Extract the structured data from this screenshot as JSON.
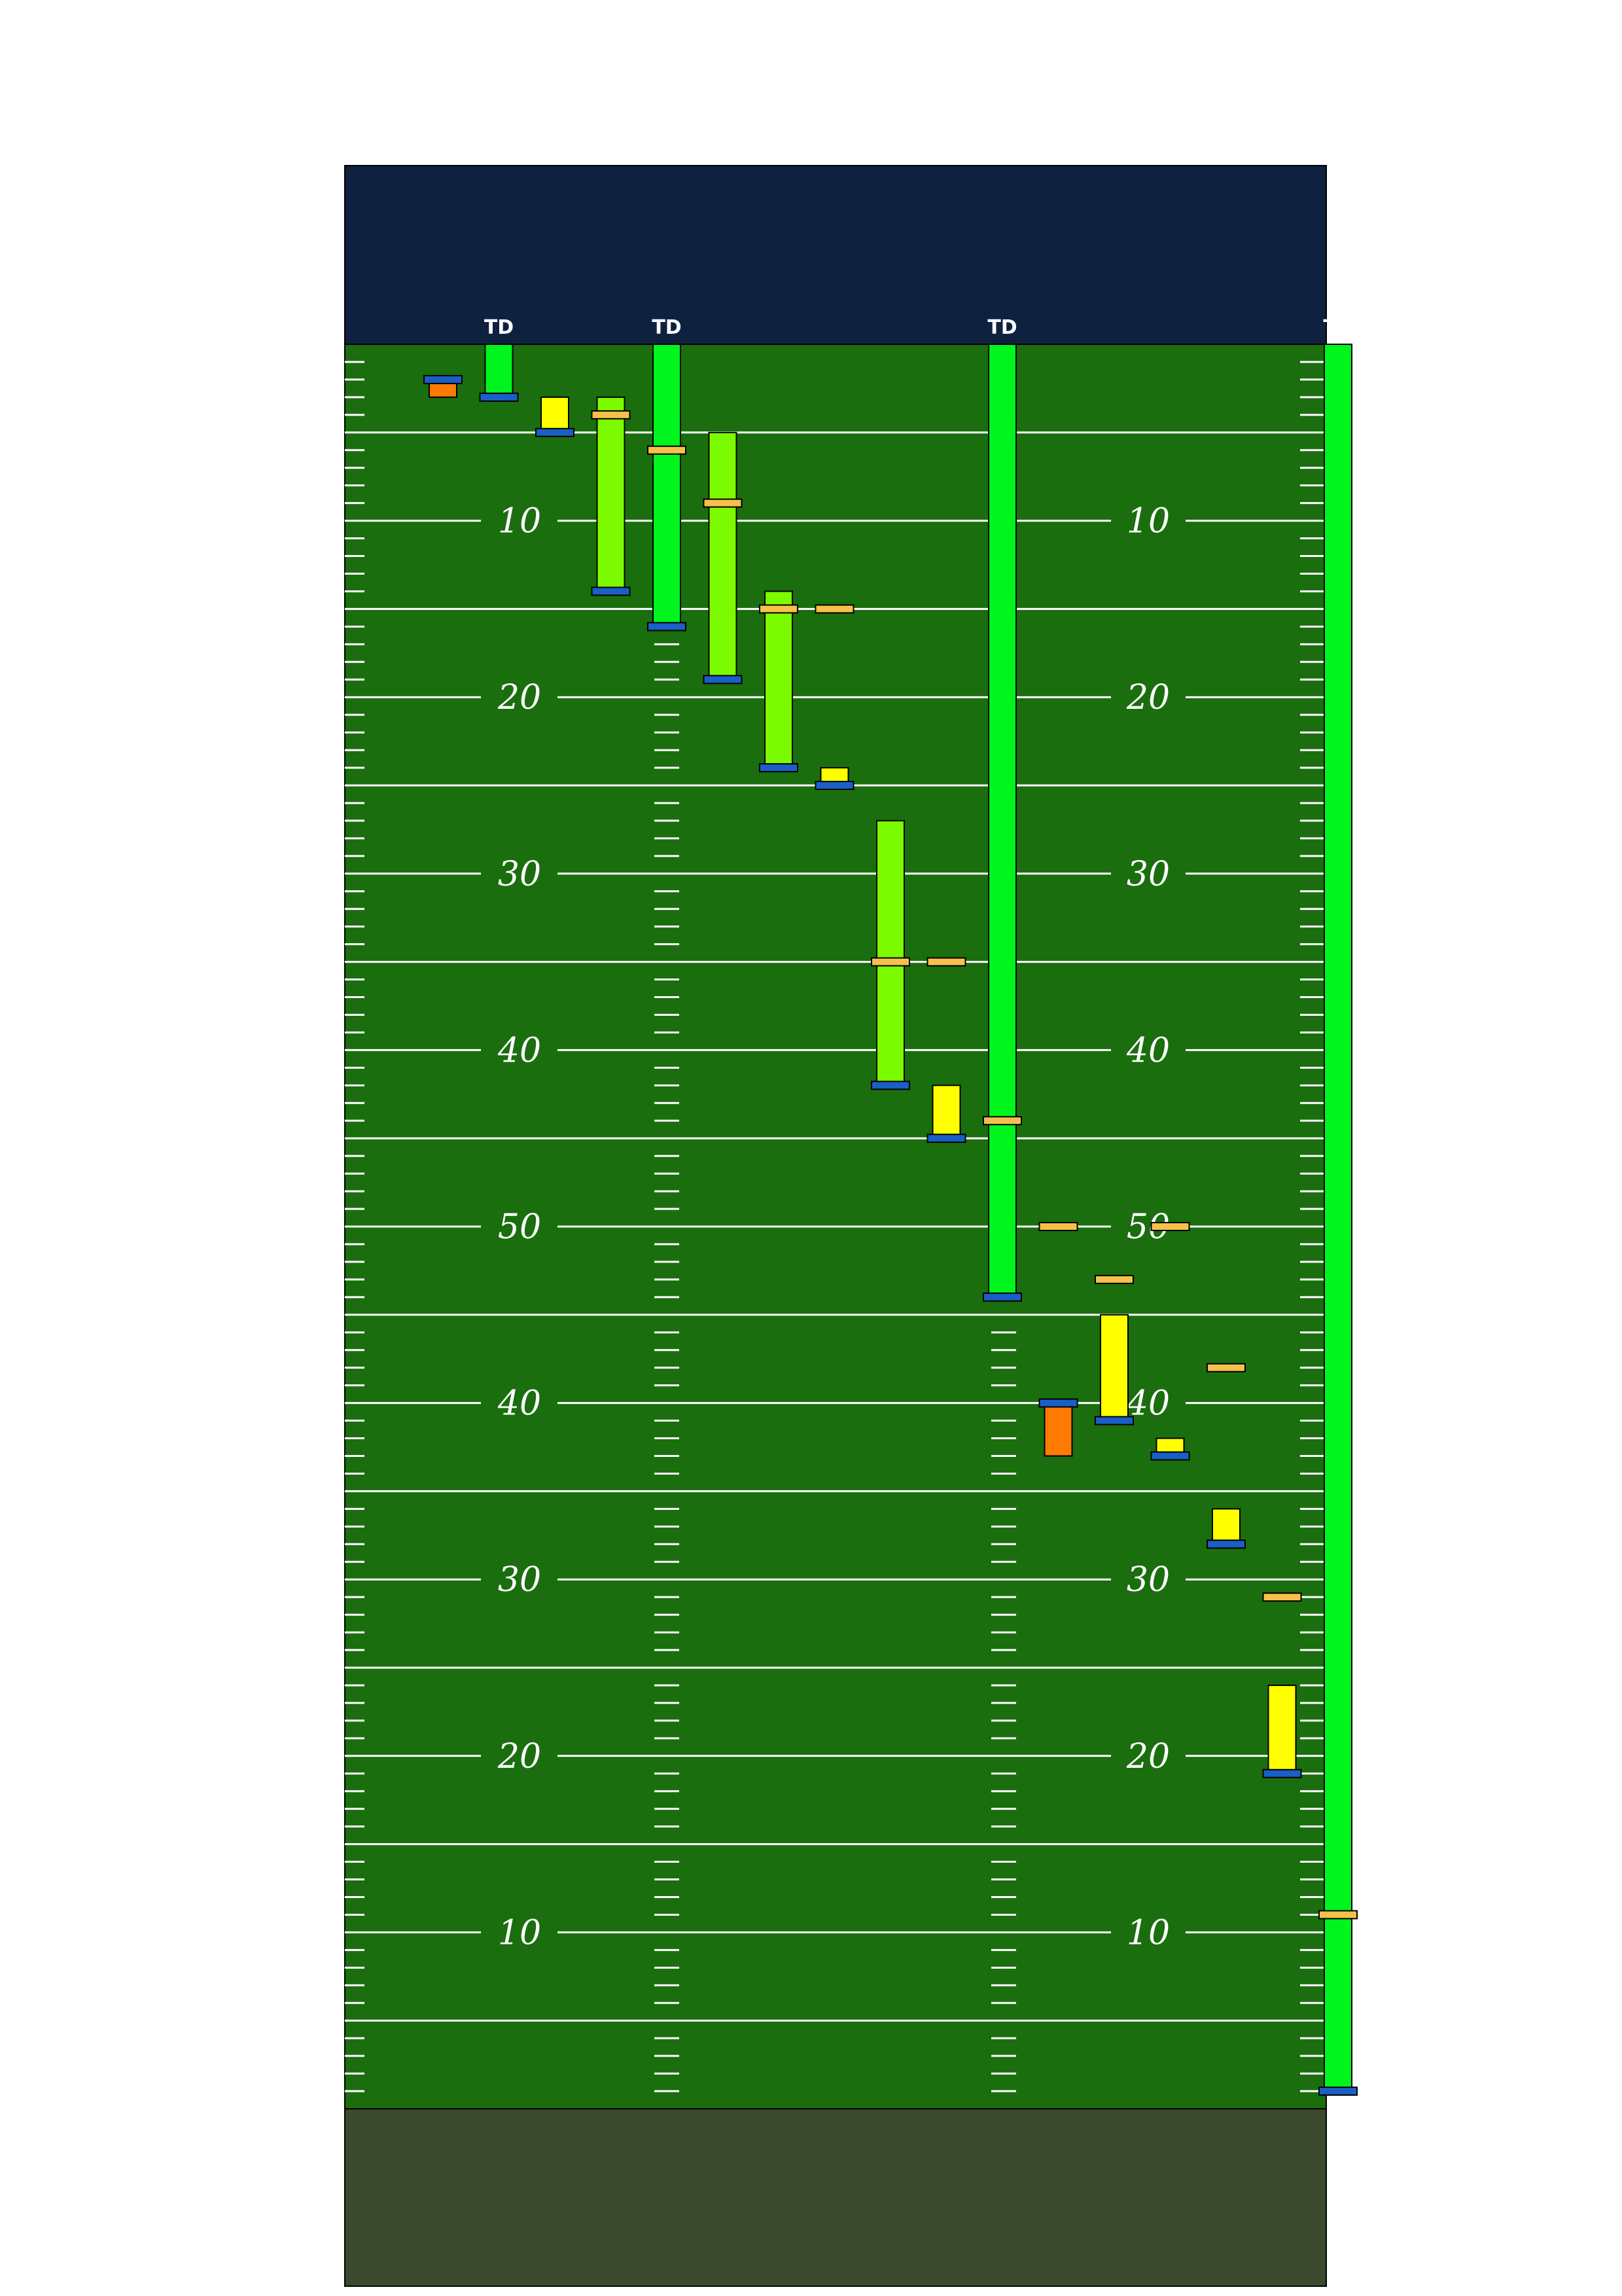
{
  "chart_data": {
    "type": "bar",
    "title": "",
    "colors": {
      "top_endzone": "#0e2240",
      "bottom_endzone": "#3b4a2c",
      "field": "#1a6e0e",
      "line": "#ffffff",
      "scrimmage_marker": "#1a5fc8",
      "first_down_marker": "#f7c04a",
      "touchdown": "#00f51e",
      "first_down": "#7cfb00",
      "short_gain": "#ffff00",
      "loss": "#ff7a00"
    },
    "td_label": "TD",
    "yard_numbers": [
      {
        "label": "10",
        "y": 10
      },
      {
        "label": "20",
        "y": 20
      },
      {
        "label": "30",
        "y": 30
      },
      {
        "label": "40",
        "y": 40
      },
      {
        "label": "50",
        "y": 50
      },
      {
        "label": "40",
        "y": 60
      },
      {
        "label": "30",
        "y": 70
      },
      {
        "label": "20",
        "y": 80
      },
      {
        "label": "10",
        "y": 90
      }
    ],
    "ylim": [
      0,
      100
    ],
    "plays": [
      {
        "play": 1,
        "scrimmage": 2,
        "gain": -1,
        "first_down_line": null,
        "result": "loss"
      },
      {
        "play": 2,
        "scrimmage": 3,
        "gain": 3,
        "first_down_line": null,
        "result": "touchdown"
      },
      {
        "play": 3,
        "scrimmage": 5,
        "gain": 2,
        "first_down_line": null,
        "result": "short_gain"
      },
      {
        "play": 4,
        "scrimmage": 14,
        "gain": 11,
        "first_down_line": 4,
        "result": "first_down"
      },
      {
        "play": 5,
        "scrimmage": 16,
        "gain": 16,
        "first_down_line": 6,
        "result": "touchdown"
      },
      {
        "play": 6,
        "scrimmage": 19,
        "gain": 14,
        "first_down_line": 9,
        "result": "first_down"
      },
      {
        "play": 7,
        "scrimmage": 24,
        "gain": 10,
        "first_down_line": 15,
        "result": "first_down"
      },
      {
        "play": 8,
        "scrimmage": 25,
        "gain": 1,
        "first_down_line": 15,
        "result": "short_gain"
      },
      {
        "play": 9,
        "scrimmage": 42,
        "gain": 15,
        "first_down_line": 35,
        "result": "first_down"
      },
      {
        "play": 10,
        "scrimmage": 45,
        "gain": 3,
        "first_down_line": 35,
        "result": "short_gain"
      },
      {
        "play": 11,
        "scrimmage": 54,
        "gain": 54,
        "first_down_line": 44,
        "result": "touchdown"
      },
      {
        "play": 12,
        "scrimmage": 60,
        "gain": -3,
        "first_down_line": 50,
        "result": "loss"
      },
      {
        "play": 13,
        "scrimmage": 61,
        "gain": 6,
        "first_down_line": 53,
        "result": "short_gain"
      },
      {
        "play": 14,
        "scrimmage": 63,
        "gain": 1,
        "first_down_line": 50,
        "result": "short_gain"
      },
      {
        "play": 15,
        "scrimmage": 68,
        "gain": 2,
        "first_down_line": 58,
        "result": "short_gain"
      },
      {
        "play": 16,
        "scrimmage": 81,
        "gain": 5,
        "first_down_line": 71,
        "result": "short_gain"
      },
      {
        "play": 17,
        "scrimmage": 99,
        "gain": 99,
        "first_down_line": 89,
        "result": "touchdown"
      }
    ]
  }
}
